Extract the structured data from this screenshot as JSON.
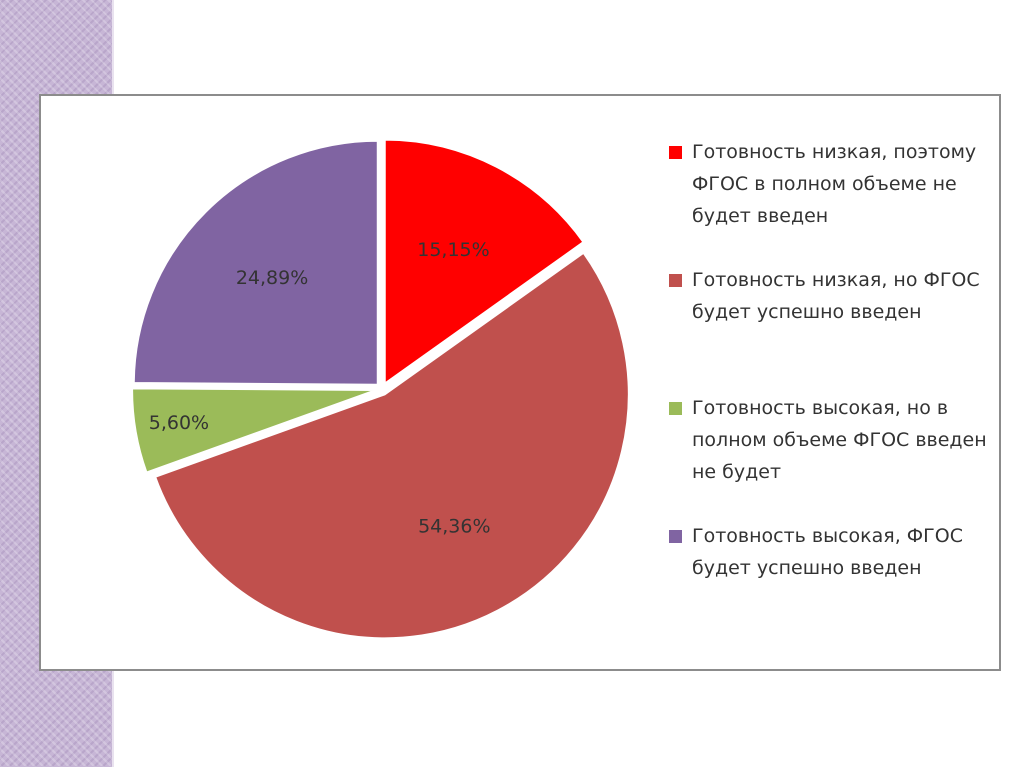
{
  "chart_data": {
    "type": "pie",
    "title": "",
    "slices": [
      {
        "label": "Готовность низкая, поэтому ФГОС в полном объеме не будет введен",
        "value": 15.15,
        "display": "15,15%",
        "color": "#ff0000"
      },
      {
        "label": "Готовность низкая, но ФГОС будет успешно введен",
        "value": 54.36,
        "display": "54,36%",
        "color": "#c0504d"
      },
      {
        "label": "Готовность высокая, но в полном объеме ФГОС введен не будет",
        "value": 5.6,
        "display": "5,60%",
        "color": "#9bbb59"
      },
      {
        "label": "Готовность высокая, ФГОС будет успешно введен",
        "value": 24.89,
        "display": "24,89%",
        "color": "#8064a2"
      }
    ],
    "legend_position": "right",
    "exploded_slices": true
  }
}
